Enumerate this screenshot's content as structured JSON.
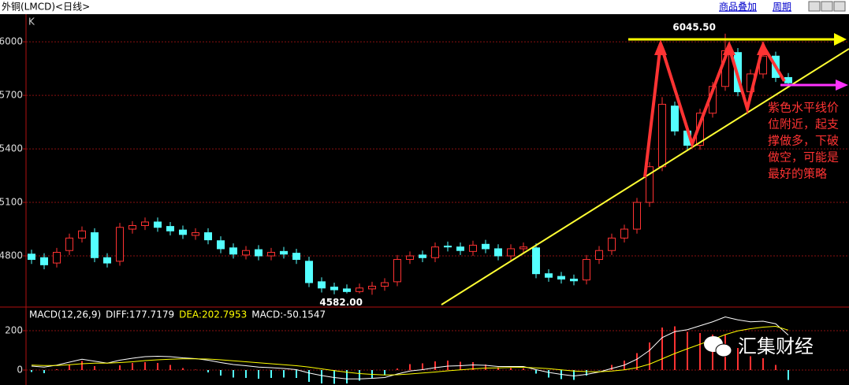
{
  "header": {
    "title": "外铜(LMCD)<日线>",
    "links": [
      "商品叠加",
      "周期"
    ],
    "panel_label": "K"
  },
  "chart_data": [
    {
      "type": "candlestick",
      "ylim": [
        4522,
        6155
      ],
      "yticks": [
        4800,
        5100,
        5400,
        5700,
        6000
      ],
      "grid": true,
      "up_color": "#ff3232",
      "down_color": "#54ffff",
      "open": [
        4810,
        4790,
        4760,
        4830,
        4900,
        4930,
        4790,
        4770,
        4950,
        4970,
        4990,
        4965,
        4945,
        4915,
        4930,
        4885,
        4845,
        4805,
        4835,
        4800,
        4825,
        4815,
        4770,
        4655,
        4625,
        4615,
        4600,
        4615,
        4630,
        4655,
        4780,
        4805,
        4790,
        4855,
        4850,
        4825,
        4865,
        4840,
        4800,
        4840,
        4845,
        4700,
        4685,
        4670,
        4665,
        4780,
        4830,
        4900,
        4950,
        5100,
        5300,
        5640,
        5500,
        5420,
        5600,
        5750,
        5940,
        5720,
        5820,
        5920,
        5800
      ],
      "high": [
        4835,
        4815,
        4845,
        4925,
        4965,
        4955,
        4815,
        4985,
        4995,
        5015,
        5015,
        4990,
        4970,
        4955,
        4955,
        4910,
        4870,
        4855,
        4860,
        4845,
        4850,
        4840,
        4795,
        4680,
        4650,
        4640,
        4645,
        4655,
        4675,
        4805,
        4825,
        4830,
        4875,
        4880,
        4875,
        4885,
        4890,
        4865,
        4865,
        4875,
        4870,
        4725,
        4710,
        4695,
        4805,
        4855,
        4925,
        4975,
        5125,
        5325,
        5690,
        5665,
        5525,
        5625,
        5775,
        6045.5,
        5965,
        5845,
        5945,
        5945,
        5825
      ],
      "low": [
        4755,
        4725,
        4735,
        4805,
        4875,
        4765,
        4735,
        4745,
        4925,
        4945,
        4935,
        4915,
        4895,
        4890,
        4865,
        4815,
        4785,
        4780,
        4775,
        4775,
        4785,
        4755,
        4625,
        4595,
        4585,
        4590,
        4590,
        4582,
        4605,
        4630,
        4755,
        4765,
        4765,
        4825,
        4805,
        4800,
        4815,
        4775,
        4775,
        4815,
        4675,
        4655,
        4645,
        4635,
        4640,
        4755,
        4805,
        4875,
        4925,
        5075,
        5275,
        5475,
        5395,
        5395,
        5575,
        5725,
        5695,
        5695,
        5795,
        5775,
        5745
      ],
      "close": [
        4780,
        4750,
        4820,
        4900,
        4940,
        4790,
        4760,
        4960,
        4970,
        4990,
        4960,
        4940,
        4920,
        4930,
        4890,
        4840,
        4810,
        4830,
        4800,
        4820,
        4810,
        4780,
        4650,
        4620,
        4610,
        4600,
        4620,
        4630,
        4650,
        4780,
        4800,
        4790,
        4850,
        4850,
        4830,
        4860,
        4840,
        4800,
        4840,
        4850,
        4700,
        4680,
        4670,
        4660,
        4780,
        4830,
        4900,
        4950,
        5100,
        5300,
        5650,
        5500,
        5420,
        5600,
        5750,
        5950,
        5720,
        5820,
        5920,
        5800,
        5770
      ],
      "high_label": "6045.50",
      "low_label": "4582.00",
      "annotation": [
        "紫色水平线价",
        "位附近，起支",
        "撑做多，下破",
        "做空，可能是",
        "最好的策略"
      ]
    },
    {
      "type": "macd",
      "ylim": [
        -76,
        312
      ],
      "yticks": [
        0,
        200
      ],
      "grid": true,
      "legend_labels": [
        "MACD(12,26,9)",
        "DIFF:177.7179",
        "DEA:202.7953",
        "MACD:-50.1547"
      ],
      "series": [
        {
          "name": "DIFF",
          "color": "#ffffff",
          "values": [
            20,
            15,
            25,
            40,
            55,
            45,
            35,
            50,
            60,
            68,
            70,
            68,
            62,
            58,
            50,
            38,
            28,
            22,
            15,
            12,
            8,
            2,
            -15,
            -28,
            -38,
            -45,
            -45,
            -42,
            -38,
            -20,
            -5,
            2,
            12,
            20,
            22,
            26,
            24,
            18,
            18,
            18,
            2,
            -12,
            -22,
            -30,
            -22,
            -10,
            8,
            25,
            55,
            100,
            165,
            195,
            205,
            225,
            245,
            270,
            255,
            245,
            248,
            235,
            177.7179
          ]
        },
        {
          "name": "DEA",
          "color": "#ffff00",
          "values": [
            25,
            23,
            23,
            27,
            32,
            35,
            35,
            38,
            42,
            48,
            52,
            55,
            57,
            57,
            56,
            52,
            47,
            42,
            37,
            32,
            27,
            22,
            15,
            6,
            -3,
            -11,
            -18,
            -22,
            -25,
            -24,
            -20,
            -15,
            -10,
            -4,
            1,
            6,
            10,
            11,
            13,
            14,
            11,
            7,
            1,
            -5,
            -8,
            -9,
            -5,
            1,
            12,
            30,
            57,
            84,
            108,
            131,
            155,
            180,
            199,
            210,
            218,
            222,
            202.7953
          ]
        },
        {
          "name": "MACD",
          "color": "#ff3232",
          "values": [
            -10,
            -16,
            4,
            26,
            46,
            20,
            0,
            24,
            36,
            40,
            36,
            26,
            10,
            2,
            -12,
            -28,
            -38,
            -40,
            -44,
            -40,
            -38,
            -40,
            -60,
            -68,
            -70,
            -68,
            -54,
            -40,
            -26,
            8,
            30,
            34,
            44,
            48,
            42,
            40,
            28,
            14,
            10,
            8,
            -18,
            -38,
            -46,
            -50,
            -28,
            -2,
            26,
            48,
            86,
            140,
            216,
            222,
            194,
            188,
            180,
            180,
            112,
            70,
            60,
            26,
            -50.1547
          ]
        }
      ]
    }
  ],
  "watermark": "汇集财经"
}
